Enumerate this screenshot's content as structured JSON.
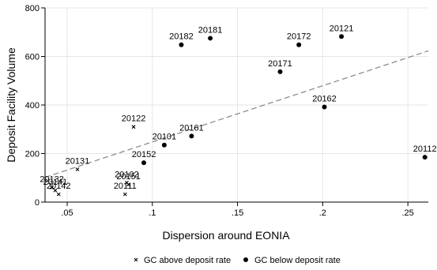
{
  "chart_data": {
    "type": "scatter",
    "xlabel": "Dispersion around EONIA",
    "ylabel": "Deposit Facility Volume",
    "xlim": [
      0.037,
      0.262
    ],
    "ylim": [
      0,
      800
    ],
    "x_ticks": [
      {
        "value": 0.05,
        "label": ".05"
      },
      {
        "value": 0.1,
        "label": ".1"
      },
      {
        "value": 0.15,
        "label": ".15"
      },
      {
        "value": 0.2,
        "label": ".2"
      },
      {
        "value": 0.25,
        "label": ".25"
      }
    ],
    "y_ticks": [
      {
        "value": 0,
        "label": "0"
      },
      {
        "value": 200,
        "label": "200"
      },
      {
        "value": 400,
        "label": "400"
      },
      {
        "value": 600,
        "label": "600"
      },
      {
        "value": 800,
        "label": "800"
      }
    ],
    "grid": true,
    "legend_position": "bottom",
    "fit_line": {
      "x": [
        0.037,
        0.262
      ],
      "y": [
        102,
        623
      ],
      "style": "dashed",
      "color": "#8c8c8c"
    },
    "series": [
      {
        "name": "GC above deposit rate",
        "marker": "x",
        "color": "#000000",
        "points": [
          {
            "label": "20122",
            "x": 0.089,
            "y": 310
          },
          {
            "label": "20131",
            "x": 0.056,
            "y": 135
          },
          {
            "label": "20132",
            "x": 0.041,
            "y": 60
          },
          {
            "label": "20141",
            "x": 0.043,
            "y": 48
          },
          {
            "label": "20142",
            "x": 0.045,
            "y": 32
          },
          {
            "label": "20102",
            "x": 0.085,
            "y": 80
          },
          {
            "label": "20151",
            "x": 0.086,
            "y": 72
          },
          {
            "label": "20111",
            "x": 0.084,
            "y": 32
          }
        ]
      },
      {
        "name": "GC below deposit rate",
        "marker": "circle",
        "color": "#000000",
        "points": [
          {
            "label": "20182",
            "x": 0.117,
            "y": 648
          },
          {
            "label": "20181",
            "x": 0.134,
            "y": 675
          },
          {
            "label": "20172",
            "x": 0.186,
            "y": 648
          },
          {
            "label": "20121",
            "x": 0.211,
            "y": 682
          },
          {
            "label": "20171",
            "x": 0.175,
            "y": 537
          },
          {
            "label": "20162",
            "x": 0.201,
            "y": 392
          },
          {
            "label": "20161",
            "x": 0.123,
            "y": 272
          },
          {
            "label": "20101",
            "x": 0.107,
            "y": 235
          },
          {
            "label": "20152",
            "x": 0.095,
            "y": 162
          },
          {
            "label": "20112",
            "x": 0.26,
            "y": 185
          }
        ]
      }
    ]
  }
}
